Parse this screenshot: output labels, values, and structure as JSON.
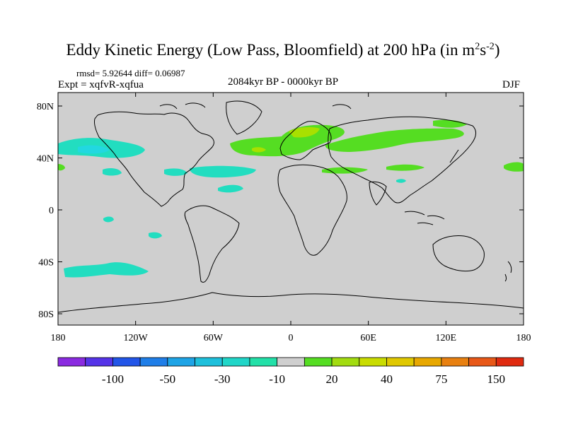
{
  "title": {
    "main": "Eddy Kinetic Energy (Low Pass, Bloomfield) at 200 hPa (in m",
    "sup1": "2",
    "mid": "s",
    "sup2": "-2",
    "end": ")"
  },
  "stats": "rmsd= 5.92644 diff= 0.06987",
  "experiment": "Expt = xqfvR-xqfua",
  "period": "2084kyr BP - 0000kyr BP",
  "season": "DJF",
  "axes": {
    "lat_labels": [
      "80N",
      "40N",
      "0",
      "40S",
      "80S"
    ],
    "lat_values": [
      80,
      40,
      0,
      -40,
      -80
    ],
    "lon_labels": [
      "180",
      "120W",
      "60W",
      "0",
      "60E",
      "120E",
      "180"
    ],
    "lon_values": [
      -180,
      -120,
      -60,
      0,
      60,
      120,
      180
    ]
  },
  "colors": {
    "land": "#cfcfcf",
    "coast": "#000000",
    "green": "#55dd22",
    "lightgreen": "#a8e000",
    "cyan": "#22ddc0",
    "lightcyan": "#22d8e0"
  },
  "anomalies": [
    {
      "name": "north-pacific-negative",
      "level": -10
    },
    {
      "name": "north-atlantic-europe-positive",
      "level": 20
    },
    {
      "name": "europe-core-positive",
      "level": 30
    },
    {
      "name": "south-pacific-negative",
      "level": -10
    }
  ],
  "colorbar": {
    "colors": [
      "#8a2ae0",
      "#5533e8",
      "#2255e8",
      "#1f7ee8",
      "#1ea4e6",
      "#1ec0dc",
      "#20d6c8",
      "#22e0a8",
      "#cfcfcf",
      "#55dd22",
      "#a2dc10",
      "#c9dc00",
      "#e0c800",
      "#e8a800",
      "#e88010",
      "#e85818",
      "#e02a10"
    ],
    "labels": [
      "-100",
      "-50",
      "-30",
      "-10",
      "20",
      "40",
      "75",
      "150"
    ],
    "label_boundary_index": [
      2,
      4,
      6,
      8,
      10,
      12,
      14,
      16
    ]
  }
}
